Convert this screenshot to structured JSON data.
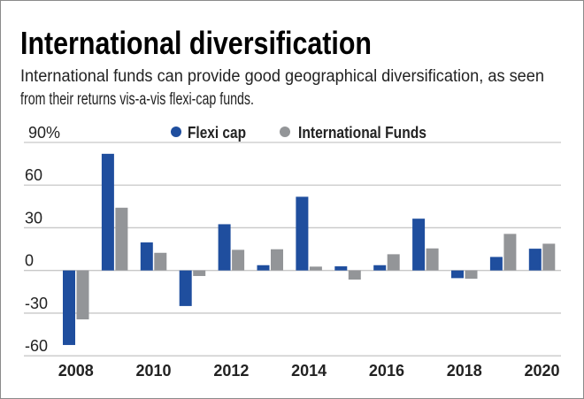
{
  "chart_data": {
    "type": "bar",
    "title": "International diversification",
    "subtitle_lines": [
      "International funds can provide good geographical diversification, as seen",
      "from their returns vis-a-vis flexi-cap funds."
    ],
    "xlabel": "",
    "ylabel": "",
    "y_unit": "%",
    "ylim": [
      -60,
      90
    ],
    "yticks": [
      90,
      60,
      30,
      0,
      -30,
      -60
    ],
    "ytick_labels": [
      "90%",
      "60",
      "30",
      "0",
      "-30",
      "-60"
    ],
    "grid": true,
    "legend_placement": "top",
    "categories": [
      "2008",
      "2009",
      "2010",
      "2011",
      "2012",
      "2013",
      "2014",
      "2015",
      "2016",
      "2017",
      "2018",
      "2019",
      "2020"
    ],
    "xtick_labels": [
      "2008",
      "2010",
      "2012",
      "2014",
      "2016",
      "2018",
      "2020"
    ],
    "series": [
      {
        "name": "Flexi cap",
        "color": "#1f4e9e",
        "values": [
          -52.4,
          82,
          19.7,
          -25,
          32.5,
          3.7,
          51.8,
          2.9,
          3.7,
          36.4,
          -5.4,
          9.5,
          15.3
        ]
      },
      {
        "name": "International Funds",
        "color": "#939598",
        "values": [
          -34.4,
          44.1,
          12.4,
          -3.9,
          14.5,
          14.9,
          2.7,
          -6.4,
          11.4,
          15.5,
          -5.8,
          25.7,
          18.8
        ]
      }
    ]
  }
}
